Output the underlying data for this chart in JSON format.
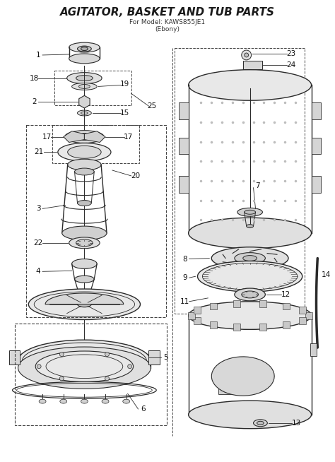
{
  "title": "AGITATOR, BASKET AND TUB PARTS",
  "subtitle1": "For Model: KAWS855JE1",
  "subtitle2": "(Ebony)",
  "bg_color": "#ffffff",
  "lc": "#2a2a2a",
  "dc": "#444444",
  "gc": "#888888",
  "title_fontsize": 11,
  "subtitle_fontsize": 6.5,
  "label_fontsize": 7.5,
  "fig_w": 4.74,
  "fig_h": 6.54,
  "dpi": 100
}
